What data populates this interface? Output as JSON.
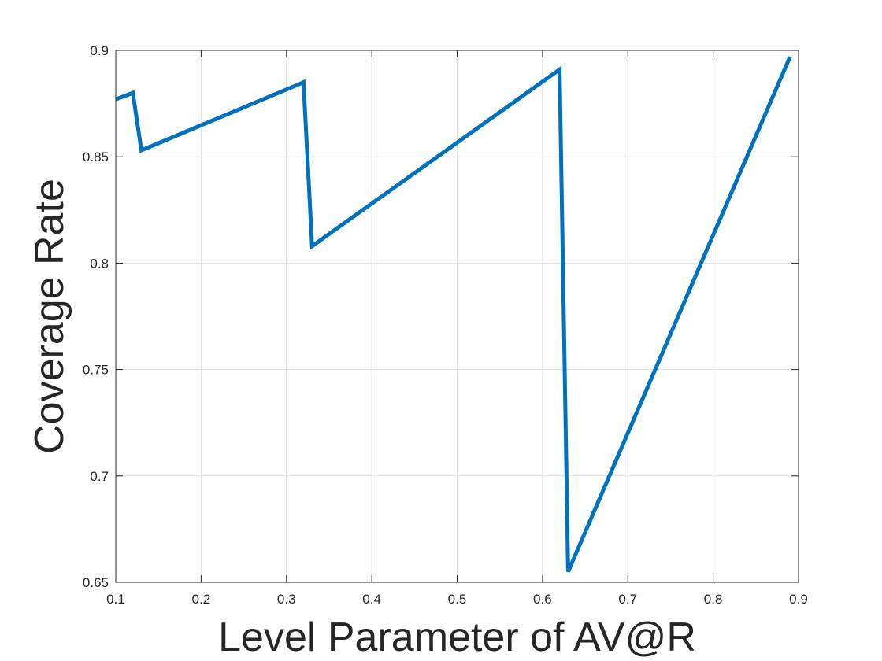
{
  "chart_data": {
    "type": "line",
    "title": "",
    "xlabel": "Level Parameter of AV@R",
    "ylabel": "Coverage Rate",
    "xlim": [
      0.1,
      0.9
    ],
    "ylim": [
      0.65,
      0.9
    ],
    "xticks": [
      0.1,
      0.2,
      0.3,
      0.4,
      0.5,
      0.6,
      0.7,
      0.8,
      0.9
    ],
    "yticks": [
      0.65,
      0.7,
      0.75,
      0.8,
      0.85,
      0.9
    ],
    "xtick_labels": [
      "0.1",
      "0.2",
      "0.3",
      "0.4",
      "0.5",
      "0.6",
      "0.7",
      "0.8",
      "0.9"
    ],
    "ytick_labels": [
      "0.65",
      "0.7",
      "0.75",
      "0.8",
      "0.85",
      "0.9"
    ],
    "grid": true,
    "series": [
      {
        "color": "#0072BD",
        "x": [
          0.1,
          0.12,
          0.13,
          0.32,
          0.33,
          0.62,
          0.63,
          0.89
        ],
        "y": [
          0.877,
          0.88,
          0.853,
          0.885,
          0.808,
          0.891,
          0.655,
          0.897
        ]
      }
    ]
  }
}
